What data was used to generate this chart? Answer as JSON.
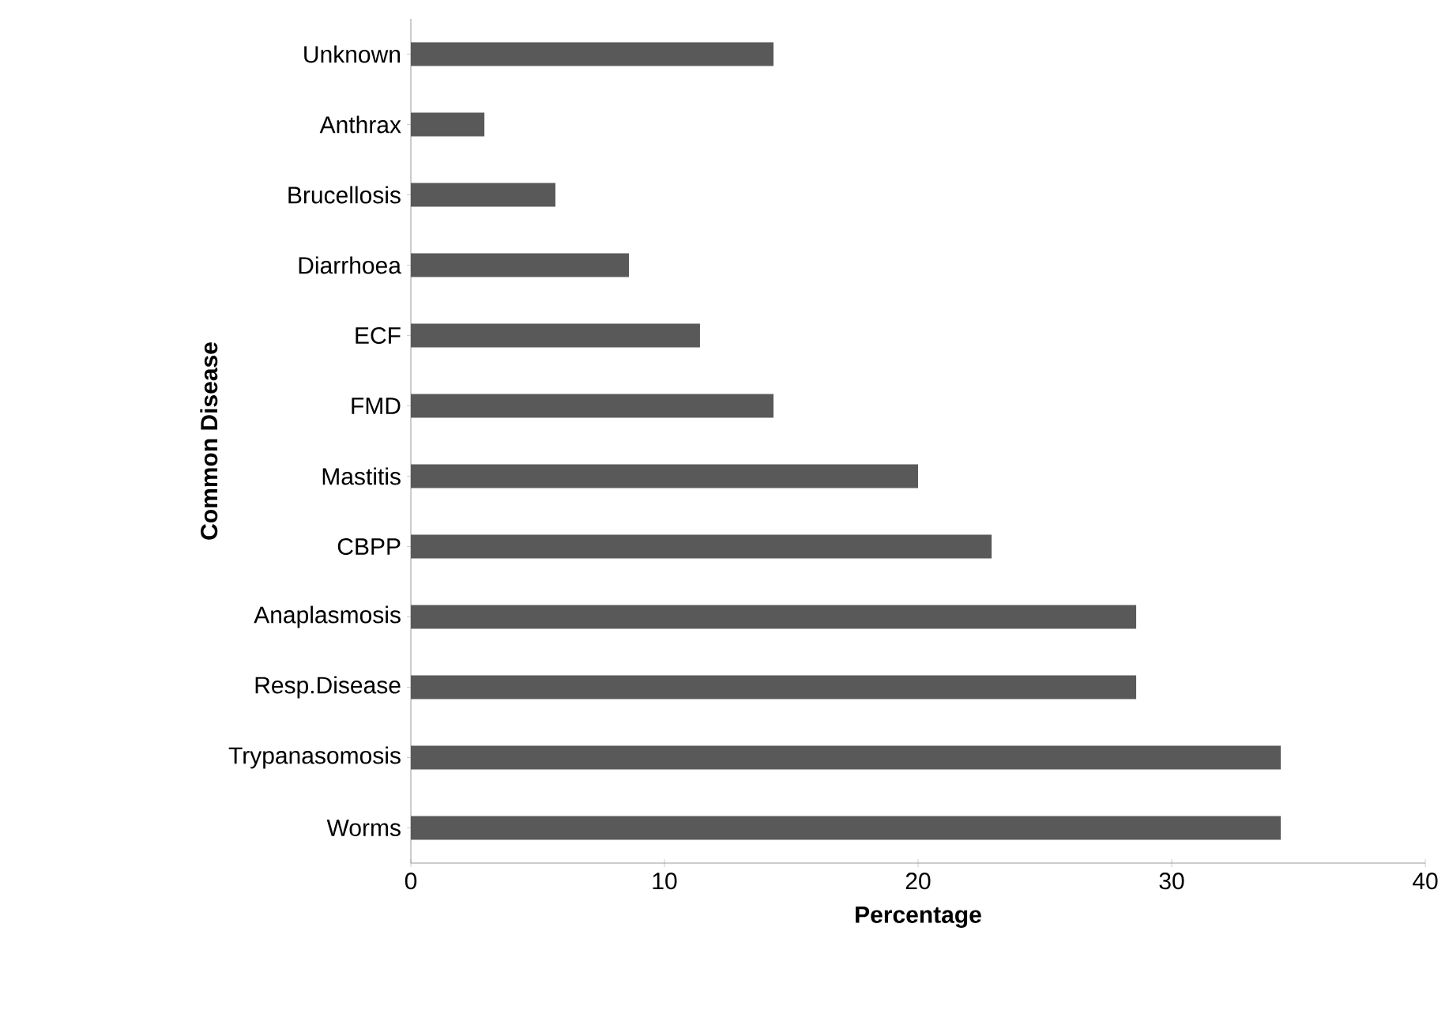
{
  "chart_data": {
    "type": "bar",
    "orientation": "horizontal",
    "xlabel": "Percentage",
    "ylabel": "Common Disease",
    "categories": [
      "Unknown",
      "Anthrax",
      "Brucellosis",
      "Diarrhoea",
      "ECF",
      "FMD",
      "Mastitis",
      "CBPP",
      "Anaplasmosis",
      "Resp.Disease",
      "Trypanasomosis",
      "Worms"
    ],
    "values": [
      14.3,
      2.9,
      5.7,
      8.6,
      11.4,
      14.3,
      20,
      22.9,
      28.6,
      28.6,
      34.3,
      34.3
    ],
    "color": "#595959",
    "xlim": [
      0,
      40
    ],
    "xticks": [
      0,
      10,
      20,
      30,
      40
    ],
    "grid": false
  }
}
